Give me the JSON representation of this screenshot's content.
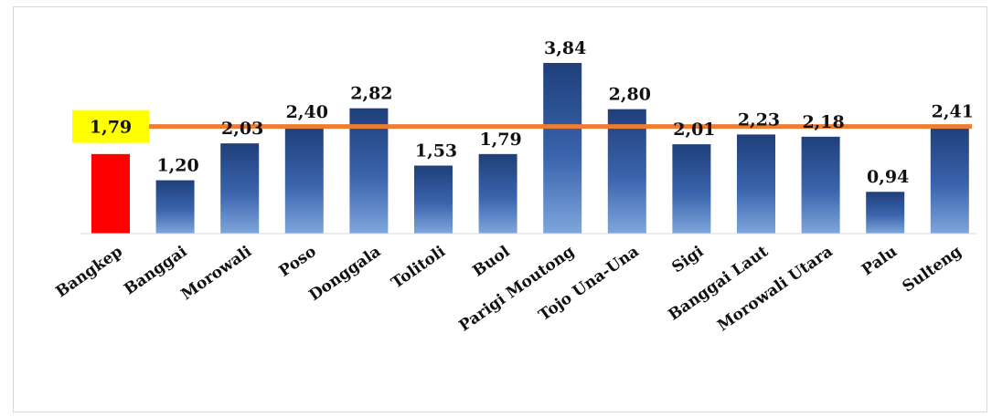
{
  "chart_data": {
    "type": "bar",
    "categories": [
      "Bangkep",
      "Banggai",
      "Morowali",
      "Poso",
      "Donggala",
      "Tolitoli",
      "Buol",
      "Parigi Moutong",
      "Tojo Una-Una",
      "Sigi",
      "Banggai Laut",
      "Morowali Utara",
      "Palu",
      "Sulteng"
    ],
    "values": [
      1.79,
      1.2,
      2.03,
      2.4,
      2.82,
      1.53,
      1.79,
      3.84,
      2.8,
      2.01,
      2.23,
      2.18,
      0.94,
      2.41
    ],
    "value_labels": [
      "1,79",
      "1,20",
      "2,03",
      "2,40",
      "2,82",
      "1,53",
      "1,79",
      "3,84",
      "2,80",
      "2,01",
      "2,23",
      "2,18",
      "0,94",
      "2,41"
    ],
    "highlight_category": "Bangkep",
    "reference_line": {
      "value": 2.41
    },
    "ylim": [
      0,
      3.84
    ],
    "grid": false,
    "legend": "none",
    "title": "",
    "xlabel": "",
    "ylabel": ""
  },
  "colors": {
    "bar": "#2f5597",
    "bar_light": "#6f9bd6",
    "highlight_bar": "#ff0000",
    "highlight_label_bg": "#ffff00",
    "reference_line": "#ed7d31",
    "axis": "#d9d9d9"
  }
}
